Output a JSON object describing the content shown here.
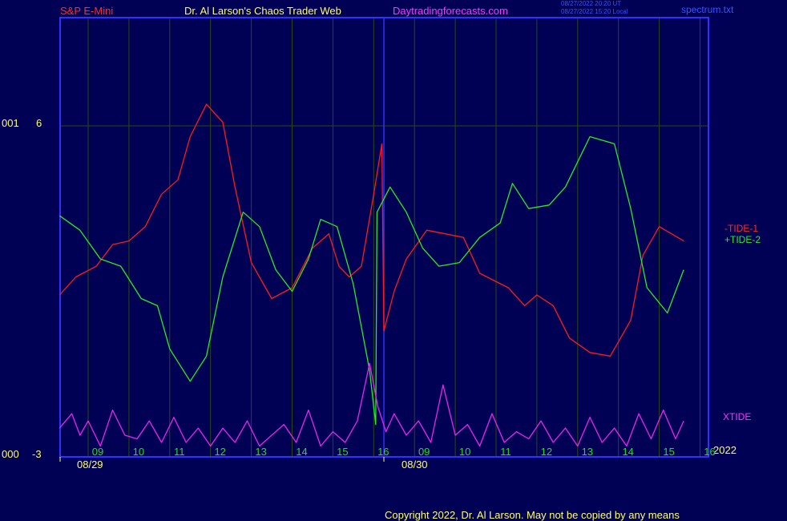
{
  "header": {
    "symbol": "S&P E-Mini",
    "author": "Dr. Al Larson's Chaos Trader Web",
    "site": "Daytradingforecasts.com",
    "time_ut": "08/27/2022 20:20 UT",
    "time_local": "08/27/2022 15:20 Local",
    "file": "spectrum.txt"
  },
  "axis": {
    "y_top_prefix": "001",
    "y_top_value": "6",
    "y_bottom_prefix": "000",
    "y_bottom_value": "-3",
    "year": "2022",
    "date_labels": [
      "08/29",
      "08/30"
    ]
  },
  "footer": {
    "copyright": "Copyright 2022, Dr. Al Larson. May not be copied by any means"
  },
  "colors": {
    "background": "#000055",
    "frame": "#3030ff",
    "gridline": "#2a4a10",
    "tide1": "#ff1a1a",
    "tide2": "#22ee22",
    "xtide": "#ee22ee",
    "hour_label": "#22dd22",
    "axis_text": "#ffff66"
  },
  "chart_data": {
    "type": "line",
    "x_unit": "hour slot (0 = 09:00 on 08/29)",
    "hour_tick_labels": [
      "09",
      "10",
      "11",
      "12",
      "13",
      "14",
      "15",
      "16",
      "09",
      "10",
      "11",
      "12",
      "13",
      "14",
      "15",
      "16"
    ],
    "y_range": [
      -3,
      6
    ],
    "y_ticks": [
      6,
      -3
    ],
    "grid": true,
    "legend_position": "right",
    "series": [
      {
        "name": "-TIDE-1",
        "color": "#ff1a1a",
        "points": [
          [
            -0.7,
            1.3
          ],
          [
            -0.3,
            1.8
          ],
          [
            0.2,
            2.1
          ],
          [
            0.6,
            2.7
          ],
          [
            1.0,
            2.8
          ],
          [
            1.4,
            3.2
          ],
          [
            1.8,
            4.1
          ],
          [
            2.2,
            4.5
          ],
          [
            2.5,
            5.7
          ],
          [
            2.9,
            6.6
          ],
          [
            3.3,
            6.1
          ],
          [
            3.6,
            4.3
          ],
          [
            4.0,
            2.2
          ],
          [
            4.5,
            1.2
          ],
          [
            5.0,
            1.5
          ],
          [
            5.5,
            2.6
          ],
          [
            5.9,
            3.0
          ],
          [
            6.15,
            2.1
          ],
          [
            6.4,
            1.8
          ],
          [
            6.7,
            2.1
          ],
          [
            7.0,
            4.1
          ],
          [
            7.2,
            5.5
          ],
          [
            7.25,
            0.3
          ],
          [
            7.5,
            1.4
          ],
          [
            7.8,
            2.3
          ],
          [
            8.3,
            3.1
          ],
          [
            9.2,
            2.9
          ],
          [
            9.6,
            1.9
          ],
          [
            10.3,
            1.5
          ],
          [
            10.7,
            1.0
          ],
          [
            11.0,
            1.3
          ],
          [
            11.4,
            1.0
          ],
          [
            11.8,
            0.1
          ],
          [
            12.3,
            -0.3
          ],
          [
            12.8,
            -0.4
          ],
          [
            13.3,
            0.6
          ],
          [
            13.6,
            2.4
          ],
          [
            14.0,
            3.2
          ],
          [
            14.3,
            3.0
          ],
          [
            14.6,
            2.8
          ]
        ]
      },
      {
        "name": "+TIDE-2",
        "color": "#22ee22",
        "points": [
          [
            -0.7,
            3.5
          ],
          [
            -0.2,
            3.1
          ],
          [
            0.3,
            2.3
          ],
          [
            0.8,
            2.1
          ],
          [
            1.3,
            1.2
          ],
          [
            1.7,
            1.0
          ],
          [
            2.0,
            -0.2
          ],
          [
            2.5,
            -1.1
          ],
          [
            2.9,
            -0.4
          ],
          [
            3.3,
            1.8
          ],
          [
            3.8,
            3.6
          ],
          [
            4.2,
            3.2
          ],
          [
            4.6,
            2.0
          ],
          [
            5.0,
            1.4
          ],
          [
            5.4,
            2.3
          ],
          [
            5.7,
            3.4
          ],
          [
            6.1,
            3.2
          ],
          [
            6.5,
            1.6
          ],
          [
            6.9,
            -0.8
          ],
          [
            7.05,
            -2.3
          ],
          [
            7.08,
            3.6
          ],
          [
            7.4,
            4.3
          ],
          [
            7.8,
            3.6
          ],
          [
            8.2,
            2.6
          ],
          [
            8.6,
            2.1
          ],
          [
            9.1,
            2.2
          ],
          [
            9.6,
            2.9
          ],
          [
            10.1,
            3.3
          ],
          [
            10.4,
            4.4
          ],
          [
            10.8,
            3.7
          ],
          [
            11.3,
            3.8
          ],
          [
            11.7,
            4.3
          ],
          [
            12.3,
            5.7
          ],
          [
            12.9,
            5.5
          ],
          [
            13.3,
            3.7
          ],
          [
            13.7,
            1.5
          ],
          [
            14.2,
            0.8
          ],
          [
            14.6,
            2.0
          ]
        ]
      },
      {
        "name": "XTIDE",
        "color": "#ee22ee",
        "points": [
          [
            -0.7,
            -2.4
          ],
          [
            -0.4,
            -2.0
          ],
          [
            -0.2,
            -2.6
          ],
          [
            0.0,
            -2.2
          ],
          [
            0.3,
            -2.9
          ],
          [
            0.6,
            -1.9
          ],
          [
            0.9,
            -2.6
          ],
          [
            1.2,
            -2.7
          ],
          [
            1.5,
            -2.2
          ],
          [
            1.8,
            -2.8
          ],
          [
            2.1,
            -2.1
          ],
          [
            2.4,
            -2.8
          ],
          [
            2.7,
            -2.4
          ],
          [
            3.0,
            -2.9
          ],
          [
            3.3,
            -2.4
          ],
          [
            3.6,
            -2.8
          ],
          [
            3.9,
            -2.2
          ],
          [
            4.2,
            -2.9
          ],
          [
            4.5,
            -2.6
          ],
          [
            4.8,
            -2.3
          ],
          [
            5.1,
            -2.8
          ],
          [
            5.4,
            -1.9
          ],
          [
            5.7,
            -2.9
          ],
          [
            6.0,
            -2.5
          ],
          [
            6.3,
            -2.8
          ],
          [
            6.6,
            -2.2
          ],
          [
            6.9,
            -0.6
          ],
          [
            7.1,
            -1.8
          ],
          [
            7.3,
            -2.5
          ],
          [
            7.5,
            -2.0
          ],
          [
            7.8,
            -2.6
          ],
          [
            8.1,
            -2.2
          ],
          [
            8.4,
            -2.8
          ],
          [
            8.7,
            -1.2
          ],
          [
            9.0,
            -2.6
          ],
          [
            9.3,
            -2.3
          ],
          [
            9.6,
            -2.9
          ],
          [
            9.9,
            -2.0
          ],
          [
            10.2,
            -2.8
          ],
          [
            10.5,
            -2.5
          ],
          [
            10.8,
            -2.7
          ],
          [
            11.1,
            -2.2
          ],
          [
            11.4,
            -2.8
          ],
          [
            11.7,
            -2.4
          ],
          [
            12.0,
            -2.9
          ],
          [
            12.3,
            -2.1
          ],
          [
            12.6,
            -2.8
          ],
          [
            12.9,
            -2.4
          ],
          [
            13.2,
            -2.9
          ],
          [
            13.5,
            -2.0
          ],
          [
            13.8,
            -2.7
          ],
          [
            14.1,
            -1.9
          ],
          [
            14.4,
            -2.7
          ],
          [
            14.6,
            -2.2
          ]
        ]
      }
    ]
  }
}
